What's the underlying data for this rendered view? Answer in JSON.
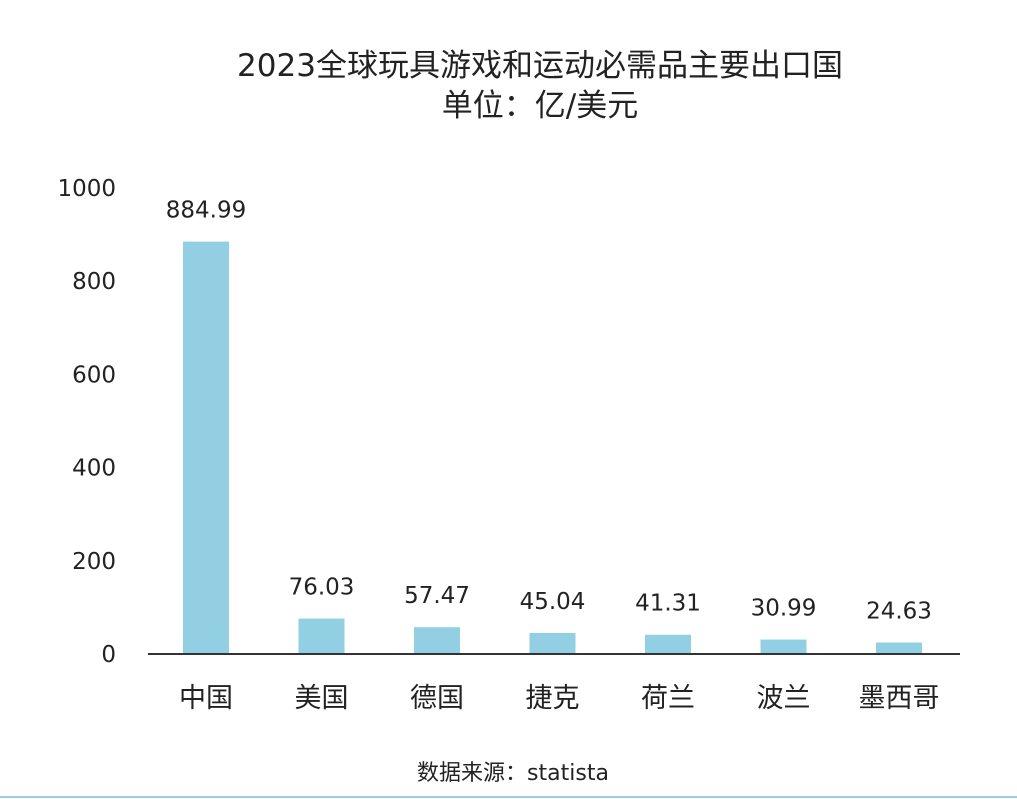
{
  "chart_data": {
    "type": "bar",
    "title": "2023全球玩具游戏和运动必需品主要出口国",
    "subtitle": "单位：亿/美元",
    "categories": [
      "中国",
      "美国",
      "德国",
      "捷克",
      "荷兰",
      "波兰",
      "墨西哥"
    ],
    "values": [
      884.99,
      76.03,
      57.47,
      45.04,
      41.31,
      30.99,
      24.63
    ],
    "value_labels": [
      "884.99",
      "76.03",
      "57.47",
      "45.04",
      "41.31",
      "30.99",
      "24.63"
    ],
    "y_ticks": [
      0,
      200,
      400,
      600,
      800,
      1000
    ],
    "y_tick_labels": [
      "0",
      "200",
      "400",
      "600",
      "800",
      "1000"
    ],
    "ylim": [
      0,
      1000
    ],
    "xlabel": "",
    "ylabel": "",
    "grid": false,
    "bar_color": "#92cfe3",
    "source": "数据来源：statista"
  }
}
